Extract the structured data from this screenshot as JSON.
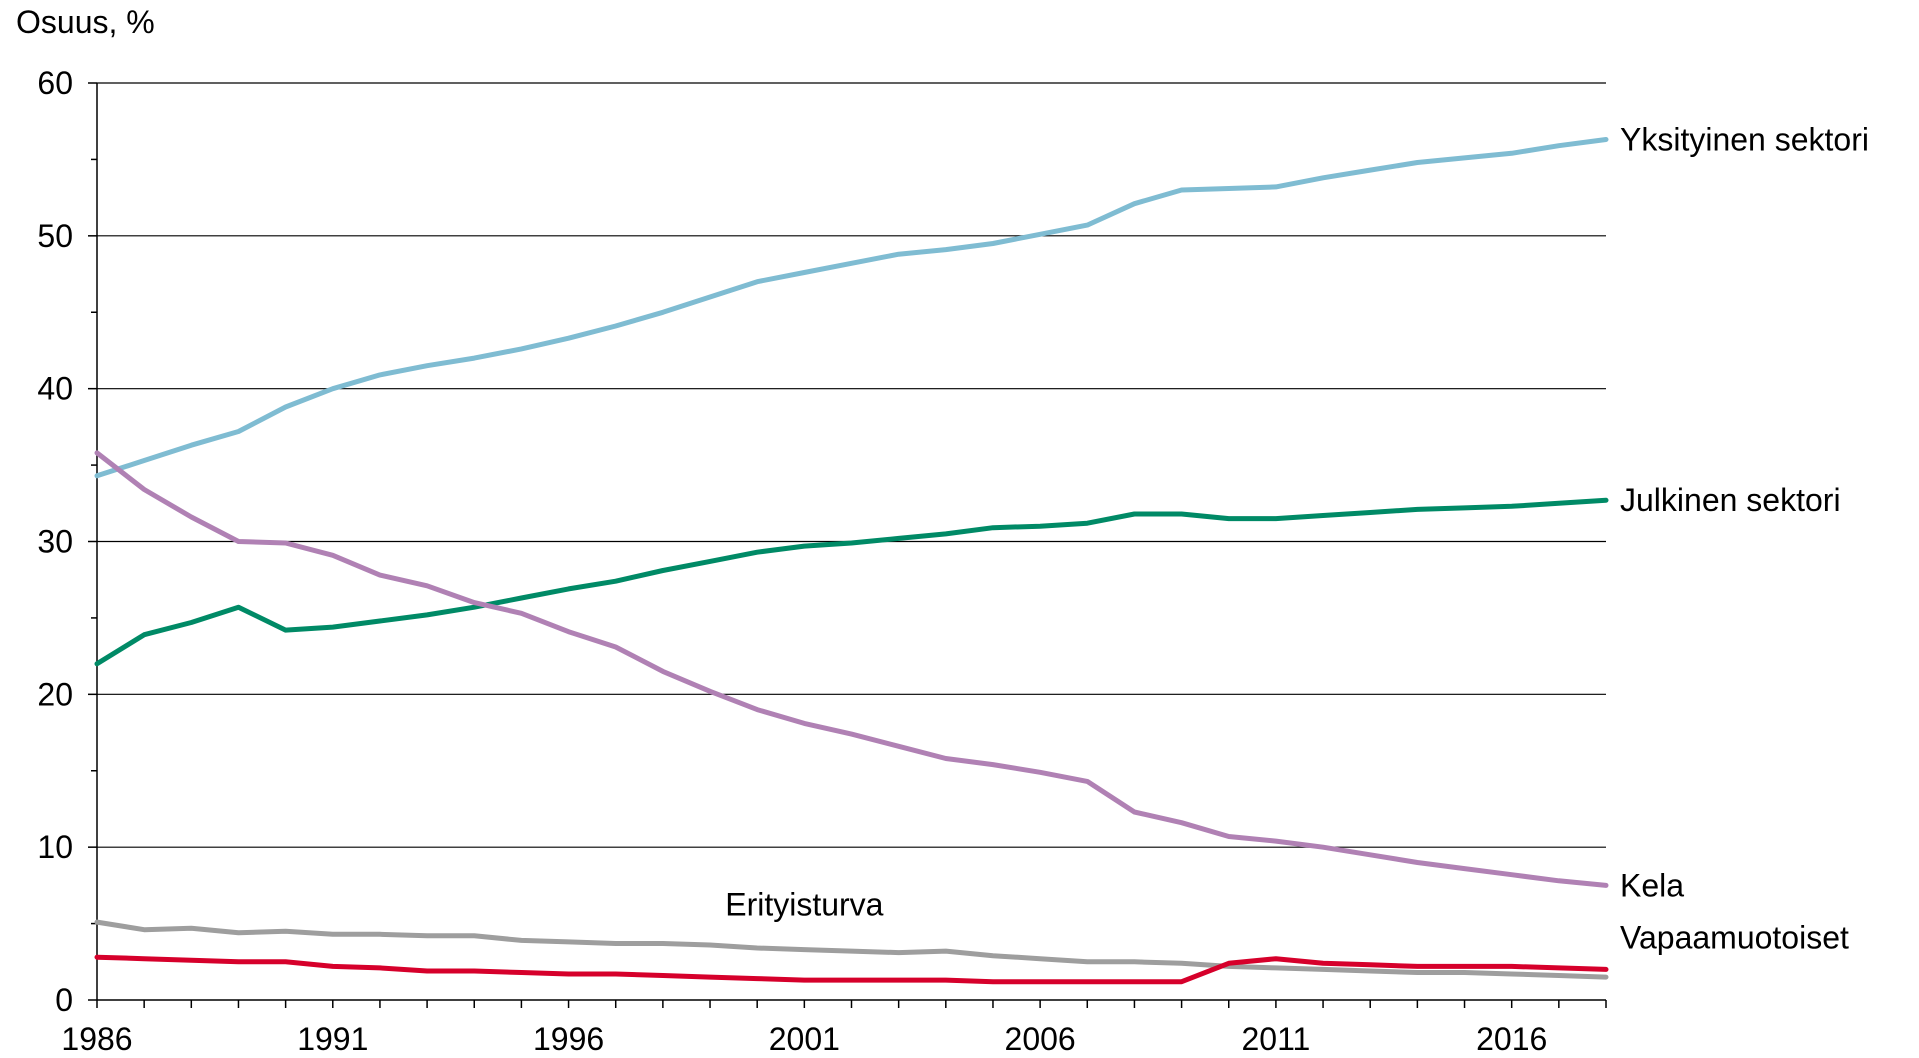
{
  "chart_data": {
    "type": "line",
    "title": "",
    "ylabel": "Osuus, %",
    "xlabel": "",
    "xlim": [
      1986,
      2018
    ],
    "ylim": [
      0,
      60
    ],
    "yticks": [
      0,
      10,
      20,
      30,
      40,
      50,
      60
    ],
    "xticks": [
      1986,
      1991,
      1996,
      2001,
      2006,
      2011,
      2016
    ],
    "grid": true,
    "legend": "inline-right",
    "x": [
      1986,
      1987,
      1988,
      1989,
      1990,
      1991,
      1992,
      1993,
      1994,
      1995,
      1996,
      1997,
      1998,
      1999,
      2000,
      2001,
      2002,
      2003,
      2004,
      2005,
      2006,
      2007,
      2008,
      2009,
      2010,
      2011,
      2012,
      2013,
      2014,
      2015,
      2016,
      2017,
      2018
    ],
    "series": [
      {
        "name": "Yksityinen sektori",
        "color": "#7fbcd2",
        "values": [
          34.3,
          35.3,
          36.3,
          37.2,
          38.8,
          40.0,
          40.9,
          41.5,
          42.0,
          42.6,
          43.3,
          44.1,
          45.0,
          46.0,
          47.0,
          47.6,
          48.2,
          48.8,
          49.1,
          49.5,
          50.1,
          50.7,
          52.1,
          53.0,
          53.1,
          53.2,
          53.8,
          54.3,
          54.8,
          55.1,
          55.4,
          55.9,
          56.3
        ]
      },
      {
        "name": "Julkinen sektori",
        "color": "#008a66",
        "values": [
          22.0,
          23.9,
          24.7,
          25.7,
          24.2,
          24.4,
          24.8,
          25.2,
          25.7,
          26.3,
          26.9,
          27.4,
          28.1,
          28.7,
          29.3,
          29.7,
          29.9,
          30.2,
          30.5,
          30.9,
          31.0,
          31.2,
          31.8,
          31.8,
          31.5,
          31.5,
          31.7,
          31.9,
          32.1,
          32.2,
          32.3,
          32.5,
          32.7
        ]
      },
      {
        "name": "Kela",
        "color": "#b081b4",
        "values": [
          35.8,
          33.4,
          31.6,
          30.0,
          29.9,
          29.1,
          27.8,
          27.1,
          26.0,
          25.3,
          24.1,
          23.1,
          21.5,
          20.2,
          19.0,
          18.1,
          17.4,
          16.6,
          15.8,
          15.4,
          14.9,
          14.3,
          12.3,
          11.6,
          10.7,
          10.4,
          10.0,
          9.5,
          9.0,
          8.6,
          8.2,
          7.8,
          7.5
        ]
      },
      {
        "name": "Erityisturva",
        "color": "#9e9e9e",
        "values": [
          5.1,
          4.6,
          4.7,
          4.4,
          4.5,
          4.3,
          4.3,
          4.2,
          4.2,
          3.9,
          3.8,
          3.7,
          3.7,
          3.6,
          3.4,
          3.3,
          3.2,
          3.1,
          3.2,
          2.9,
          2.7,
          2.5,
          2.5,
          2.4,
          2.2,
          2.1,
          2.0,
          1.9,
          1.8,
          1.8,
          1.7,
          1.6,
          1.5
        ]
      },
      {
        "name": "Vapaamuotoiset",
        "color": "#d6002b",
        "values": [
          2.8,
          2.7,
          2.6,
          2.5,
          2.5,
          2.2,
          2.1,
          1.9,
          1.9,
          1.8,
          1.7,
          1.7,
          1.6,
          1.5,
          1.4,
          1.3,
          1.3,
          1.3,
          1.3,
          1.2,
          1.2,
          1.2,
          1.2,
          1.2,
          2.4,
          2.7,
          2.4,
          2.3,
          2.2,
          2.2,
          2.2,
          2.1,
          2.0
        ]
      }
    ]
  }
}
